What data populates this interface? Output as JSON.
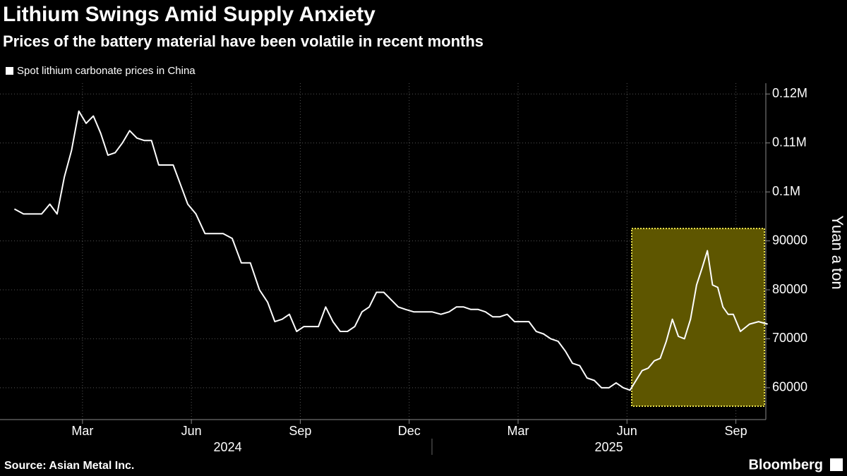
{
  "chart_data": {
    "type": "line",
    "title": "Lithium Swings Amid Supply Anxiety",
    "subtitle": "Prices of the battery material have been volatile in recent months",
    "y_label": "Yuan a ton",
    "source": "Source: Asian Metal Inc.",
    "logo": "Bloomberg",
    "years": [
      "2024",
      "2025"
    ],
    "x": [
      "2024-01",
      "2024-01",
      "2024-01",
      "2024-01",
      "2024-02",
      "2024-02",
      "2024-02",
      "2024-02",
      "2024-02",
      "2024-03",
      "2024-03",
      "2024-03",
      "2024-03",
      "2024-03",
      "2024-04",
      "2024-04",
      "2024-04",
      "2024-04",
      "2024-04",
      "2024-05",
      "2024-05",
      "2024-05",
      "2024-05",
      "2024-05",
      "2024-06",
      "2024-06",
      "2024-06",
      "2024-06",
      "2024-07",
      "2024-07",
      "2024-07",
      "2024-07",
      "2024-08",
      "2024-08",
      "2024-08",
      "2024-08",
      "2024-08",
      "2024-09",
      "2024-09",
      "2024-09",
      "2024-09",
      "2024-09",
      "2024-10",
      "2024-10",
      "2024-10",
      "2024-10",
      "2024-10",
      "2024-11",
      "2024-11",
      "2024-11",
      "2024-11",
      "2024-11",
      "2024-12",
      "2024-12",
      "2024-12",
      "2024-12",
      "2025-01",
      "2025-01",
      "2025-01",
      "2025-01",
      "2025-01",
      "2025-02",
      "2025-02",
      "2025-02",
      "2025-02",
      "2025-02",
      "2025-03",
      "2025-03",
      "2025-03",
      "2025-03",
      "2025-03",
      "2025-04",
      "2025-04",
      "2025-04",
      "2025-04",
      "2025-04",
      "2025-05",
      "2025-05",
      "2025-05",
      "2025-05",
      "2025-05",
      "2025-06",
      "2025-06",
      "2025-06",
      "2025-06",
      "2025-06",
      "2025-06",
      "2025-07",
      "2025-07",
      "2025-07",
      "2025-07",
      "2025-07",
      "2025-07",
      "2025-08",
      "2025-08",
      "2025-08",
      "2025-08",
      "2025-08",
      "2025-08",
      "2025-08",
      "2025-09",
      "2025-09",
      "2025-09",
      "2025-09"
    ],
    "series": [
      {
        "name": "Spot lithium carbonate prices in China",
        "color": "#ffffff",
        "values": [
          96500,
          95500,
          95500,
          95500,
          97500,
          95500,
          103000,
          108500,
          116500,
          114000,
          115500,
          112000,
          107500,
          108000,
          110000,
          112500,
          111000,
          110500,
          110500,
          105500,
          105500,
          105500,
          101500,
          97500,
          95500,
          91500,
          91500,
          91500,
          90500,
          85500,
          85500,
          80000,
          77500,
          73500,
          74000,
          75000,
          71500,
          72500,
          72500,
          72500,
          76500,
          73500,
          71500,
          71500,
          72500,
          75500,
          76500,
          79500,
          79500,
          78000,
          76500,
          76000,
          75500,
          75500,
          75500,
          75000,
          75500,
          76500,
          76500,
          76000,
          76000,
          75500,
          74500,
          74500,
          75000,
          73500,
          73500,
          73500,
          71500,
          71000,
          70000,
          69500,
          67500,
          65000,
          64500,
          62000,
          61500,
          60000,
          60000,
          61000,
          60000,
          59500,
          61500,
          63500,
          64000,
          65500,
          66000,
          69500,
          74000,
          70500,
          70000,
          74000,
          81000,
          84500,
          88000,
          81000,
          80500,
          76500,
          75000,
          75000,
          71500,
          73000,
          73500,
          73000
        ]
      }
    ],
    "xlim": [
      "2024-01",
      "2025-10"
    ],
    "xticks": [
      {
        "value": "2024-03",
        "label": "Mar"
      },
      {
        "value": "2024-06",
        "label": "Jun"
      },
      {
        "value": "2024-09",
        "label": "Sep"
      },
      {
        "value": "2024-12",
        "label": "Dec"
      },
      {
        "value": "2025-03",
        "label": "Mar"
      },
      {
        "value": "2025-06",
        "label": "Jun"
      },
      {
        "value": "2025-09",
        "label": "Sep"
      }
    ],
    "ylim": [
      53500,
      122200
    ],
    "yticks": [
      60000,
      70000,
      80000,
      90000,
      {
        "value": 100000,
        "label": "0.1M"
      },
      {
        "value": 110000,
        "label": "0.11M"
      },
      {
        "value": 120000,
        "label": "0.12M"
      }
    ],
    "grid": true
  }
}
